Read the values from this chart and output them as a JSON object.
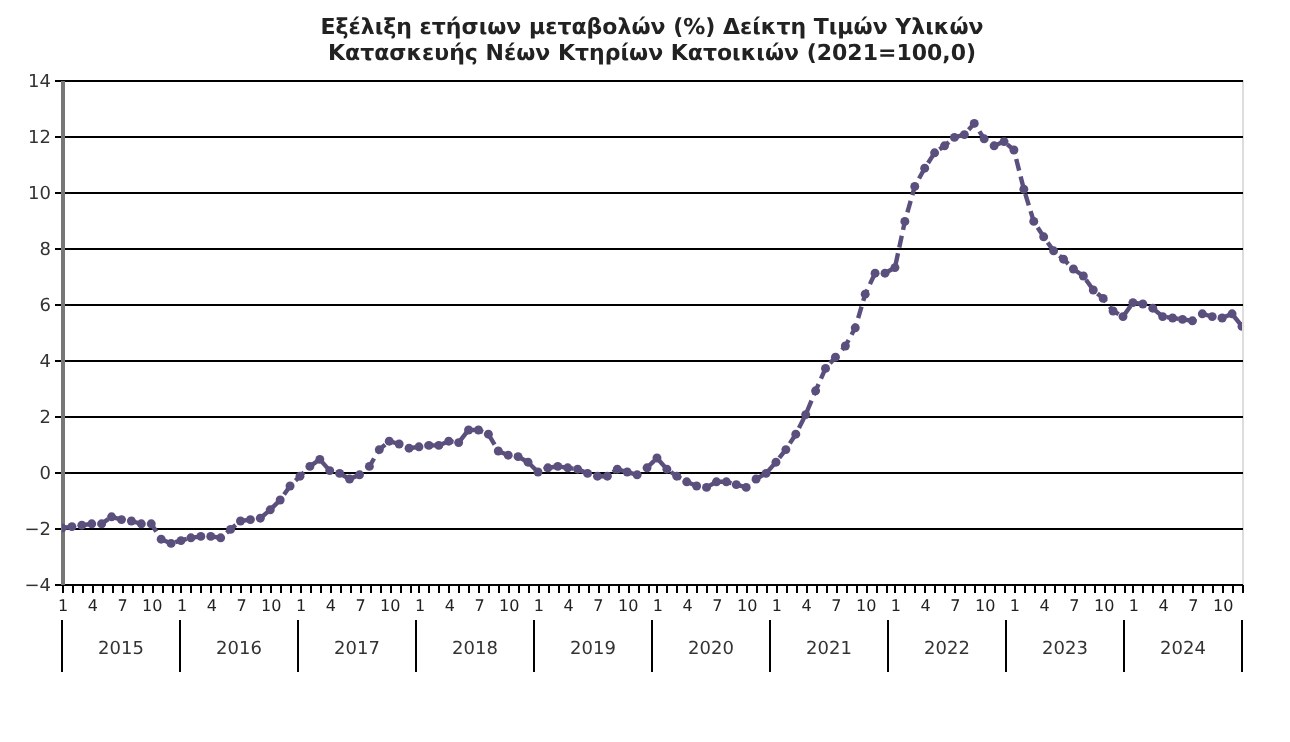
{
  "chart_data": {
    "type": "line",
    "title": "Εξέλιξη ετήσιων μεταβολών (%) Δείκτη Τιμών Υλικών\nΚατασκευής Νέων Κτηρίων Κατοικιών (2021=100,0)",
    "categories": [
      "1",
      null,
      null,
      "4",
      null,
      null,
      "7",
      null,
      null,
      "10",
      null,
      null,
      "1",
      null,
      null,
      "4",
      null,
      null,
      "7",
      null,
      null,
      "10",
      null,
      null,
      "1",
      null,
      null,
      "4",
      null,
      null,
      "7",
      null,
      null,
      "10",
      null,
      null,
      "1",
      null,
      null,
      "4",
      null,
      null,
      "7",
      null,
      null,
      "10",
      null,
      null,
      "1",
      null,
      null,
      "4",
      null,
      null,
      "7",
      null,
      null,
      "10",
      null,
      null,
      "1",
      null,
      null,
      "4",
      null,
      null,
      "7",
      null,
      null,
      "10",
      null,
      null,
      "1",
      null,
      null,
      "4",
      null,
      null,
      "7",
      null,
      null,
      "10",
      null,
      null,
      "1",
      null,
      null,
      "4",
      null,
      null,
      "7",
      null,
      null,
      "10",
      null,
      null,
      "1",
      null,
      null,
      "4",
      null,
      null,
      "7",
      null,
      null,
      "10",
      null,
      null,
      "1",
      null,
      null,
      "4",
      null,
      null,
      "7",
      null,
      null,
      "10",
      null,
      null
    ],
    "series": [
      {
        "color": "#5b4f7d",
        "values": [
          -2.0,
          -1.95,
          -1.9,
          -1.85,
          -1.85,
          -1.6,
          -1.7,
          -1.75,
          -1.85,
          -1.85,
          -2.4,
          -2.55,
          -2.45,
          -2.35,
          -2.3,
          -2.3,
          -2.35,
          -2.05,
          -1.75,
          -1.7,
          -1.65,
          -1.35,
          -1.0,
          -0.5,
          -0.15,
          0.2,
          0.45,
          0.05,
          -0.05,
          -0.25,
          -0.1,
          0.2,
          0.8,
          1.1,
          1.0,
          0.85,
          0.9,
          0.95,
          0.95,
          1.1,
          1.05,
          1.5,
          1.5,
          1.35,
          0.75,
          0.6,
          0.55,
          0.35,
          0.0,
          0.15,
          0.2,
          0.15,
          0.1,
          -0.05,
          -0.15,
          -0.15,
          0.1,
          0.0,
          -0.1,
          0.15,
          0.5,
          0.1,
          -0.15,
          -0.35,
          -0.5,
          -0.55,
          -0.35,
          -0.35,
          -0.45,
          -0.55,
          -0.25,
          -0.05,
          0.35,
          0.8,
          1.35,
          2.05,
          2.9,
          3.7,
          4.1,
          4.5,
          5.15,
          6.35,
          7.1,
          7.1,
          7.3,
          8.95,
          10.2,
          10.85,
          11.4,
          11.65,
          11.95,
          12.05,
          12.45,
          11.9,
          11.65,
          11.8,
          11.5,
          10.1,
          8.95,
          8.4,
          7.9,
          7.6,
          7.25,
          7.0,
          6.5,
          6.2,
          5.75,
          5.55,
          6.05,
          6.0,
          5.85,
          5.55,
          5.5,
          5.45,
          5.4,
          5.65,
          5.55,
          5.5,
          5.65,
          5.2
        ]
      }
    ],
    "ylim": [
      -4,
      14
    ],
    "yticks": [
      -4,
      -2,
      0,
      2,
      4,
      6,
      8,
      10,
      12,
      14
    ],
    "grid": "y",
    "legend": false,
    "marker": "circle",
    "line_style": "dashed",
    "annotations": [
      "2015",
      "2016",
      "2017",
      "2018",
      "2019",
      "2020",
      "2021",
      "2022",
      "2023",
      "2024"
    ]
  }
}
